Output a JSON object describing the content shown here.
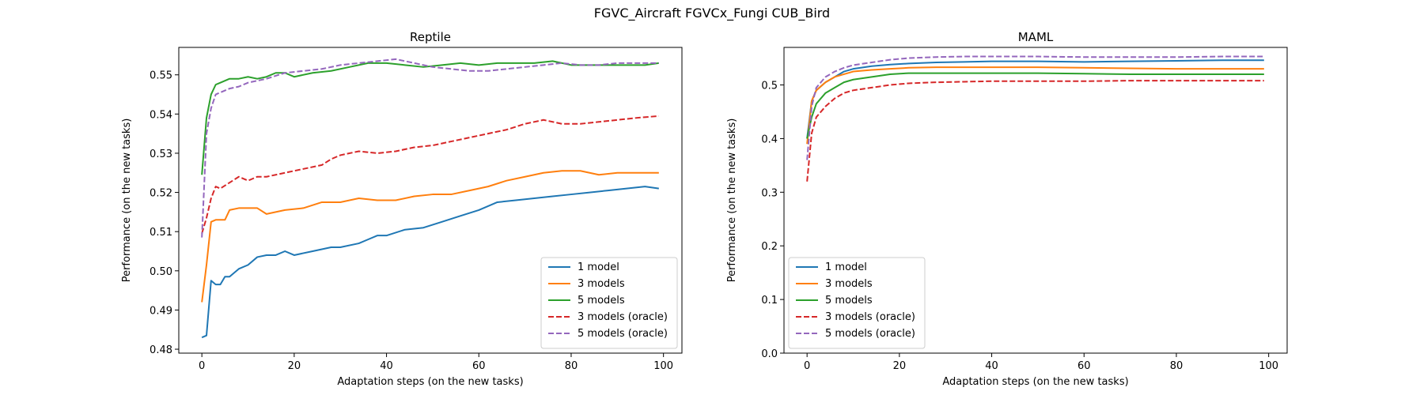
{
  "figure": {
    "suptitle": "FGVC_Aircraft FGVCx_Fungi CUB_Bird"
  },
  "chart_data": [
    {
      "type": "line",
      "title": "Reptile",
      "xlabel": "Adaptation steps (on the new tasks)",
      "ylabel": "Performance (on the new tasks)",
      "xlim": [
        -5,
        104
      ],
      "ylim": [
        0.479,
        0.557
      ],
      "xticks": [
        0,
        20,
        40,
        60,
        80,
        100
      ],
      "yticks": [
        0.48,
        0.49,
        0.5,
        0.51,
        0.52,
        0.53,
        0.54,
        0.55
      ],
      "ytick_labels": [
        "0.48",
        "0.49",
        "0.50",
        "0.51",
        "0.52",
        "0.53",
        "0.54",
        "0.55"
      ],
      "grid": false,
      "legend": "lower right",
      "series": [
        {
          "name": "1 model",
          "color": "#1f77b4",
          "dash": "solid",
          "x": [
            0,
            1,
            2,
            3,
            4,
            5,
            6,
            8,
            10,
            12,
            14,
            16,
            18,
            20,
            24,
            28,
            30,
            34,
            36,
            38,
            40,
            44,
            48,
            52,
            56,
            60,
            64,
            68,
            72,
            76,
            80,
            84,
            88,
            92,
            96,
            99
          ],
          "y": [
            0.483,
            0.4835,
            0.4975,
            0.4965,
            0.4965,
            0.4985,
            0.4985,
            0.5005,
            0.5015,
            0.5035,
            0.504,
            0.504,
            0.505,
            0.504,
            0.505,
            0.506,
            0.506,
            0.507,
            0.508,
            0.509,
            0.509,
            0.5105,
            0.511,
            0.5125,
            0.514,
            0.5155,
            0.5175,
            0.518,
            0.5185,
            0.519,
            0.5195,
            0.52,
            0.5205,
            0.521,
            0.5215,
            0.521
          ]
        },
        {
          "name": "3 models",
          "color": "#ff7f0e",
          "dash": "solid",
          "x": [
            0,
            1,
            2,
            3,
            5,
            6,
            8,
            10,
            12,
            14,
            18,
            22,
            26,
            30,
            34,
            38,
            42,
            46,
            50,
            54,
            58,
            62,
            66,
            70,
            74,
            78,
            82,
            86,
            90,
            94,
            99
          ],
          "y": [
            0.492,
            0.5015,
            0.5125,
            0.513,
            0.513,
            0.5155,
            0.516,
            0.516,
            0.516,
            0.5145,
            0.5155,
            0.516,
            0.5175,
            0.5175,
            0.5185,
            0.518,
            0.518,
            0.519,
            0.5195,
            0.5195,
            0.5205,
            0.5215,
            0.523,
            0.524,
            0.525,
            0.5255,
            0.5255,
            0.5245,
            0.525,
            0.525,
            0.525
          ]
        },
        {
          "name": "5 models",
          "color": "#2ca02c",
          "dash": "solid",
          "x": [
            0,
            1,
            2,
            3,
            4,
            6,
            8,
            10,
            12,
            14,
            16,
            18,
            20,
            24,
            28,
            32,
            36,
            40,
            44,
            48,
            52,
            56,
            60,
            64,
            68,
            72,
            76,
            80,
            84,
            88,
            92,
            96,
            99
          ],
          "y": [
            0.5245,
            0.539,
            0.545,
            0.5475,
            0.548,
            0.549,
            0.549,
            0.5495,
            0.549,
            0.5495,
            0.5505,
            0.5505,
            0.5495,
            0.5505,
            0.551,
            0.552,
            0.553,
            0.553,
            0.5525,
            0.552,
            0.5525,
            0.553,
            0.5525,
            0.553,
            0.553,
            0.553,
            0.5535,
            0.5525,
            0.5525,
            0.5525,
            0.5525,
            0.5525,
            0.553
          ]
        },
        {
          "name": "3 models (oracle)",
          "color": "#d62728",
          "dash": "dashed",
          "x": [
            0,
            1,
            2,
            3,
            4,
            6,
            8,
            10,
            12,
            14,
            18,
            22,
            26,
            28,
            30,
            34,
            38,
            42,
            46,
            50,
            54,
            58,
            62,
            66,
            70,
            74,
            78,
            82,
            86,
            90,
            94,
            99
          ],
          "y": [
            0.5095,
            0.5135,
            0.5185,
            0.5215,
            0.521,
            0.5225,
            0.524,
            0.523,
            0.524,
            0.524,
            0.525,
            0.526,
            0.527,
            0.5285,
            0.5295,
            0.5305,
            0.53,
            0.5305,
            0.5315,
            0.532,
            0.533,
            0.534,
            0.535,
            0.536,
            0.5375,
            0.5385,
            0.5375,
            0.5375,
            0.538,
            0.5385,
            0.539,
            0.5395
          ]
        },
        {
          "name": "5 models (oracle)",
          "color": "#9467bd",
          "dash": "dashed",
          "x": [
            0,
            1,
            2,
            3,
            4,
            6,
            8,
            10,
            12,
            14,
            18,
            22,
            26,
            30,
            34,
            38,
            42,
            46,
            50,
            54,
            58,
            62,
            66,
            70,
            74,
            78,
            82,
            86,
            90,
            94,
            99
          ],
          "y": [
            0.5085,
            0.535,
            0.5415,
            0.545,
            0.5455,
            0.5465,
            0.547,
            0.548,
            0.5485,
            0.549,
            0.5505,
            0.551,
            0.5515,
            0.5525,
            0.553,
            0.5535,
            0.554,
            0.553,
            0.552,
            0.5515,
            0.551,
            0.551,
            0.5515,
            0.552,
            0.5525,
            0.553,
            0.5525,
            0.5525,
            0.553,
            0.553,
            0.553
          ]
        }
      ]
    },
    {
      "type": "line",
      "title": "MAML",
      "xlabel": "Adaptation steps (on the new tasks)",
      "ylabel": "Performance (on the new tasks)",
      "xlim": [
        -5,
        104
      ],
      "ylim": [
        0.0,
        0.57
      ],
      "xticks": [
        0,
        20,
        40,
        60,
        80,
        100
      ],
      "yticks": [
        0.0,
        0.1,
        0.2,
        0.3,
        0.4,
        0.5
      ],
      "ytick_labels": [
        "0.0",
        "0.1",
        "0.2",
        "0.3",
        "0.4",
        "0.5"
      ],
      "grid": false,
      "legend": "lower left",
      "series": [
        {
          "name": "1 model",
          "color": "#1f77b4",
          "dash": "solid",
          "x": [
            0,
            1,
            2,
            4,
            6,
            8,
            10,
            14,
            18,
            22,
            28,
            34,
            40,
            50,
            60,
            70,
            80,
            90,
            99
          ],
          "y": [
            0.4,
            0.47,
            0.49,
            0.505,
            0.515,
            0.525,
            0.53,
            0.535,
            0.538,
            0.54,
            0.542,
            0.543,
            0.544,
            0.544,
            0.543,
            0.544,
            0.545,
            0.546,
            0.546
          ]
        },
        {
          "name": "3 models",
          "color": "#ff7f0e",
          "dash": "solid",
          "x": [
            0,
            1,
            2,
            4,
            6,
            8,
            10,
            14,
            18,
            22,
            28,
            34,
            40,
            50,
            60,
            70,
            80,
            90,
            99
          ],
          "y": [
            0.39,
            0.47,
            0.49,
            0.505,
            0.515,
            0.52,
            0.525,
            0.528,
            0.53,
            0.532,
            0.533,
            0.533,
            0.533,
            0.533,
            0.532,
            0.531,
            0.53,
            0.53,
            0.53
          ]
        },
        {
          "name": "5 models",
          "color": "#2ca02c",
          "dash": "solid",
          "x": [
            0,
            1,
            2,
            4,
            6,
            8,
            10,
            14,
            18,
            22,
            28,
            34,
            40,
            50,
            60,
            70,
            80,
            90,
            99
          ],
          "y": [
            0.4,
            0.44,
            0.465,
            0.485,
            0.495,
            0.505,
            0.51,
            0.515,
            0.52,
            0.522,
            0.522,
            0.522,
            0.522,
            0.522,
            0.521,
            0.52,
            0.52,
            0.52,
            0.52
          ]
        },
        {
          "name": "3 models (oracle)",
          "color": "#d62728",
          "dash": "dashed",
          "x": [
            0,
            1,
            2,
            4,
            6,
            8,
            10,
            14,
            18,
            22,
            28,
            34,
            40,
            50,
            60,
            70,
            80,
            90,
            99
          ],
          "y": [
            0.32,
            0.41,
            0.44,
            0.46,
            0.475,
            0.485,
            0.49,
            0.495,
            0.5,
            0.503,
            0.505,
            0.506,
            0.507,
            0.507,
            0.507,
            0.508,
            0.508,
            0.508,
            0.508
          ]
        },
        {
          "name": "5 models (oracle)",
          "color": "#9467bd",
          "dash": "dashed",
          "x": [
            0,
            1,
            2,
            4,
            6,
            8,
            10,
            14,
            18,
            22,
            28,
            34,
            40,
            50,
            60,
            70,
            80,
            90,
            99
          ],
          "y": [
            0.36,
            0.46,
            0.495,
            0.515,
            0.525,
            0.532,
            0.537,
            0.542,
            0.547,
            0.55,
            0.552,
            0.553,
            0.553,
            0.553,
            0.552,
            0.552,
            0.552,
            0.553,
            0.553
          ]
        }
      ]
    }
  ]
}
